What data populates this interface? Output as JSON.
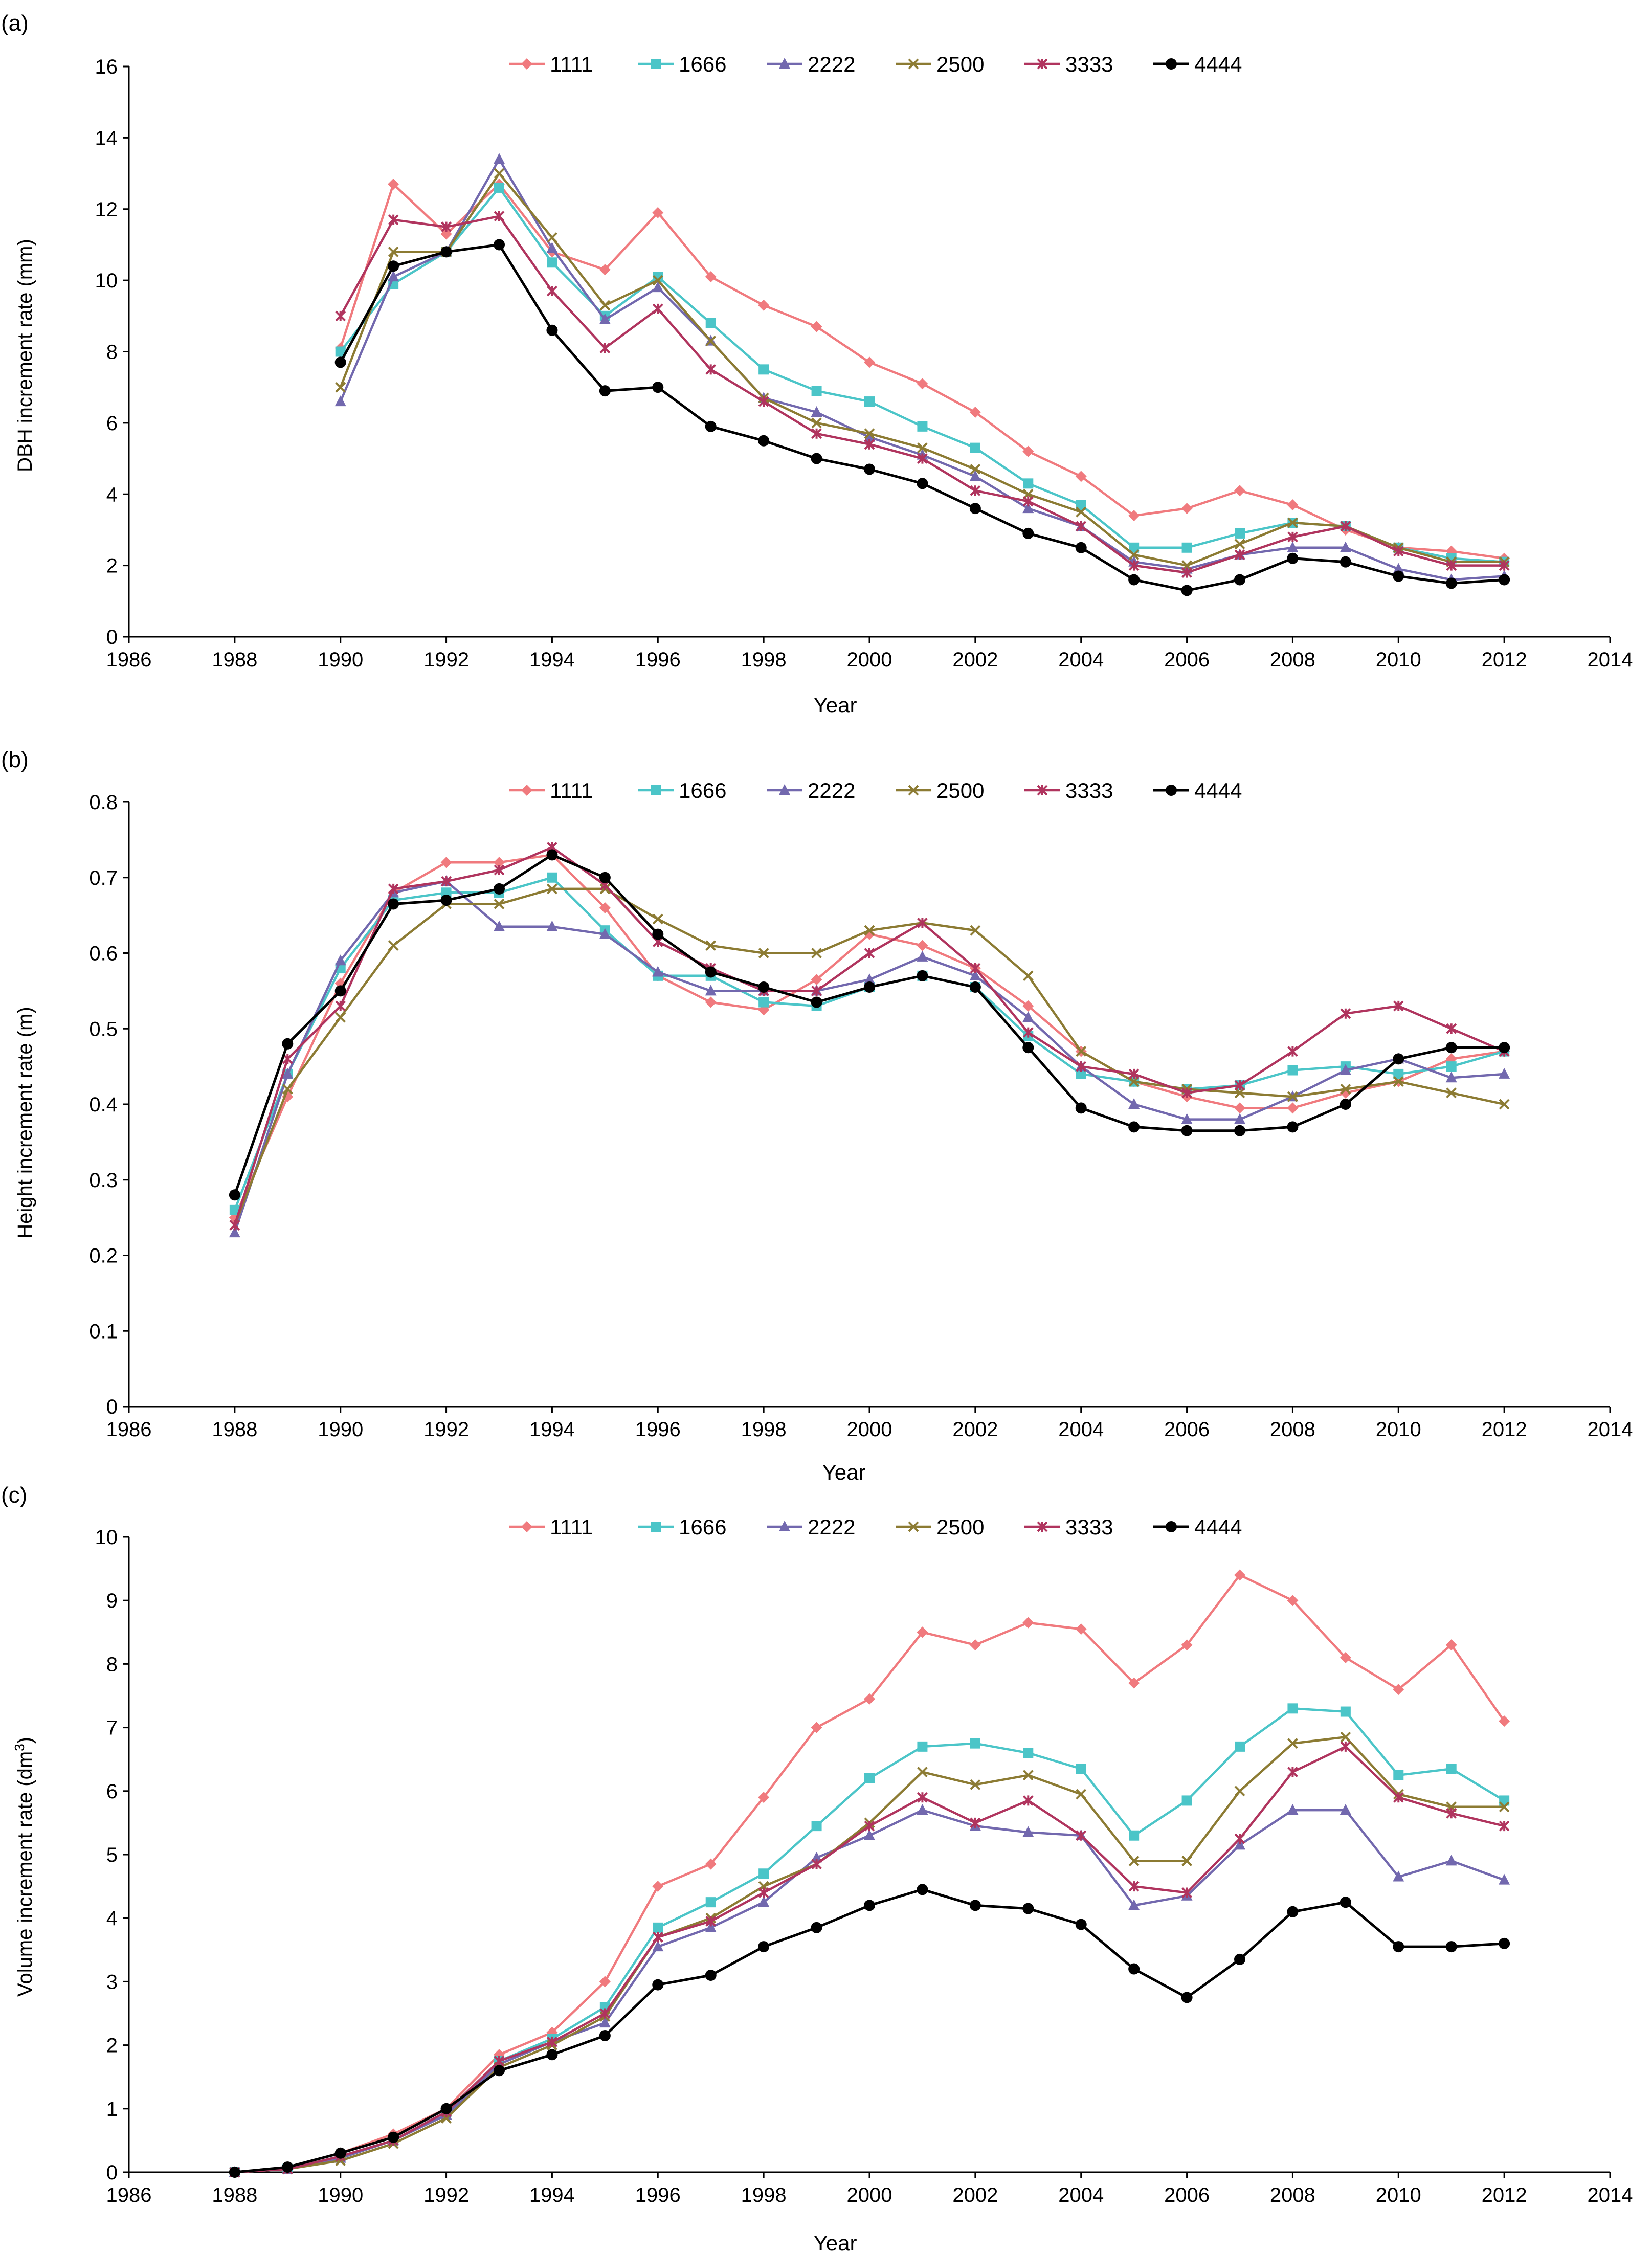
{
  "colors": {
    "s1111": "#F07A7E",
    "s1666": "#4BC5C8",
    "s2222": "#7268AE",
    "s2500": "#8C7B33",
    "s3333": "#B0345E",
    "s4444": "#000000",
    "axis": "#000000"
  },
  "chart_data": [
    {
      "type": "line",
      "panel": "(a)",
      "title": "",
      "xlabel": "Year",
      "ylabel": "DBH increment rate (mm)",
      "xlim": [
        1986,
        2014
      ],
      "ylim": [
        0,
        16
      ],
      "xticks": [
        1986,
        1988,
        1990,
        1992,
        1994,
        1996,
        1998,
        2000,
        2002,
        2004,
        2006,
        2008,
        2010,
        2012,
        2014
      ],
      "yticks": [
        0,
        2,
        4,
        6,
        8,
        10,
        12,
        14,
        16
      ],
      "x": [
        1990,
        1991,
        1992,
        1993,
        1994,
        1995,
        1996,
        1997,
        1998,
        1999,
        2000,
        2001,
        2002,
        2003,
        2004,
        2005,
        2006,
        2007,
        2008,
        2009,
        2010,
        2011,
        2012
      ],
      "series": [
        {
          "name": "1111",
          "values": [
            8.1,
            12.7,
            11.3,
            12.7,
            10.8,
            10.3,
            11.9,
            10.1,
            9.3,
            8.7,
            7.7,
            7.1,
            6.3,
            5.2,
            4.5,
            3.4,
            3.6,
            4.1,
            3.7,
            3.0,
            2.5,
            2.4,
            2.2
          ]
        },
        {
          "name": "1666",
          "values": [
            8.0,
            9.9,
            10.8,
            12.6,
            10.5,
            9.0,
            10.1,
            8.8,
            7.5,
            6.9,
            6.6,
            5.9,
            5.3,
            4.3,
            3.7,
            2.5,
            2.5,
            2.9,
            3.2,
            3.1,
            2.5,
            2.2,
            2.1
          ]
        },
        {
          "name": "2222",
          "values": [
            6.6,
            10.1,
            10.8,
            13.4,
            10.9,
            8.9,
            9.8,
            8.3,
            6.7,
            6.3,
            5.6,
            5.1,
            4.5,
            3.6,
            3.1,
            2.1,
            1.9,
            2.3,
            2.5,
            2.5,
            1.9,
            1.6,
            1.7
          ]
        },
        {
          "name": "2500",
          "values": [
            7.0,
            10.8,
            10.8,
            13.0,
            11.2,
            9.3,
            10.0,
            8.3,
            6.7,
            6.0,
            5.7,
            5.3,
            4.7,
            4.0,
            3.5,
            2.3,
            2.0,
            2.6,
            3.2,
            3.1,
            2.5,
            2.1,
            2.1
          ]
        },
        {
          "name": "3333",
          "values": [
            9.0,
            11.7,
            11.5,
            11.8,
            9.7,
            8.1,
            9.2,
            7.5,
            6.6,
            5.7,
            5.4,
            5.0,
            4.1,
            3.8,
            3.1,
            2.0,
            1.8,
            2.3,
            2.8,
            3.1,
            2.4,
            2.0,
            2.0
          ]
        },
        {
          "name": "4444",
          "values": [
            7.7,
            10.4,
            10.8,
            11.0,
            8.6,
            6.9,
            7.0,
            5.9,
            5.5,
            5.0,
            4.7,
            4.3,
            3.6,
            2.9,
            2.5,
            1.6,
            1.3,
            1.6,
            2.2,
            2.1,
            1.7,
            1.5,
            1.6
          ]
        }
      ]
    },
    {
      "type": "line",
      "panel": "(b)",
      "title": "",
      "xlabel": "Year",
      "ylabel": "Height increment rate (m)",
      "xlim": [
        1986,
        2014
      ],
      "ylim": [
        0,
        0.8
      ],
      "xticks": [
        1986,
        1988,
        1990,
        1992,
        1994,
        1996,
        1998,
        2000,
        2002,
        2004,
        2006,
        2008,
        2010,
        2012,
        2014
      ],
      "yticks": [
        0,
        0.1,
        0.2,
        0.3,
        0.4,
        0.5,
        0.6,
        0.7,
        0.8
      ],
      "x": [
        1988,
        1989,
        1990,
        1991,
        1992,
        1993,
        1994,
        1995,
        1996,
        1997,
        1998,
        1999,
        2000,
        2001,
        2002,
        2003,
        2004,
        2005,
        2006,
        2007,
        2008,
        2009,
        2010,
        2011,
        2012
      ],
      "series": [
        {
          "name": "1111",
          "values": [
            0.25,
            0.41,
            0.56,
            0.68,
            0.72,
            0.72,
            0.73,
            0.66,
            0.57,
            0.535,
            0.525,
            0.565,
            0.625,
            0.61,
            0.58,
            0.53,
            0.47,
            0.43,
            0.41,
            0.395,
            0.395,
            0.415,
            0.43,
            0.46,
            0.47
          ]
        },
        {
          "name": "1666",
          "values": [
            0.26,
            0.44,
            0.58,
            0.67,
            0.68,
            0.68,
            0.7,
            0.63,
            0.57,
            0.57,
            0.535,
            0.53,
            0.555,
            0.57,
            0.555,
            0.49,
            0.44,
            0.43,
            0.42,
            0.425,
            0.445,
            0.45,
            0.44,
            0.45,
            0.47
          ]
        },
        {
          "name": "2222",
          "values": [
            0.23,
            0.44,
            0.59,
            0.68,
            0.695,
            0.635,
            0.635,
            0.625,
            0.575,
            0.55,
            0.55,
            0.55,
            0.565,
            0.595,
            0.57,
            0.515,
            0.45,
            0.4,
            0.38,
            0.38,
            0.41,
            0.445,
            0.46,
            0.435,
            0.44
          ]
        },
        {
          "name": "2500",
          "values": [
            0.24,
            0.42,
            0.515,
            0.61,
            0.665,
            0.665,
            0.685,
            0.685,
            0.645,
            0.61,
            0.6,
            0.6,
            0.63,
            0.64,
            0.63,
            0.57,
            0.47,
            0.43,
            0.42,
            0.415,
            0.41,
            0.42,
            0.43,
            0.415,
            0.4
          ]
        },
        {
          "name": "3333",
          "values": [
            0.24,
            0.46,
            0.53,
            0.685,
            0.695,
            0.71,
            0.74,
            0.69,
            0.615,
            0.58,
            0.55,
            0.55,
            0.6,
            0.64,
            0.58,
            0.495,
            0.45,
            0.44,
            0.415,
            0.425,
            0.47,
            0.52,
            0.53,
            0.5,
            0.47
          ]
        },
        {
          "name": "4444",
          "values": [
            0.28,
            0.48,
            0.55,
            0.665,
            0.67,
            0.685,
            0.73,
            0.7,
            0.625,
            0.575,
            0.555,
            0.535,
            0.555,
            0.57,
            0.555,
            0.475,
            0.395,
            0.37,
            0.365,
            0.365,
            0.37,
            0.4,
            0.46,
            0.475,
            0.475
          ]
        }
      ]
    },
    {
      "type": "line",
      "panel": "(c)",
      "title": "",
      "xlabel": "Year",
      "ylabel": "Volume increment rate (dm",
      "ylabel_sup": "3",
      "ylabel_close": ")",
      "xlim": [
        1986,
        2014
      ],
      "ylim": [
        0,
        10
      ],
      "xticks": [
        1986,
        1988,
        1990,
        1992,
        1994,
        1996,
        1998,
        2000,
        2002,
        2004,
        2006,
        2008,
        2010,
        2012,
        2014
      ],
      "yticks": [
        0,
        1,
        2,
        3,
        4,
        5,
        6,
        7,
        8,
        9,
        10
      ],
      "x": [
        1988,
        1989,
        1990,
        1991,
        1992,
        1993,
        1994,
        1995,
        1996,
        1997,
        1998,
        1999,
        2000,
        2001,
        2002,
        2003,
        2004,
        2005,
        2006,
        2007,
        2008,
        2009,
        2010,
        2011,
        2012
      ],
      "series": [
        {
          "name": "1111",
          "values": [
            0.0,
            0.08,
            0.3,
            0.6,
            1.0,
            1.85,
            2.2,
            3.0,
            4.5,
            4.85,
            5.9,
            7.0,
            7.45,
            8.5,
            8.3,
            8.65,
            8.55,
            7.7,
            8.3,
            9.4,
            9.0,
            8.1,
            7.6,
            8.3,
            7.1
          ]
        },
        {
          "name": "1666",
          "values": [
            0.0,
            0.05,
            0.25,
            0.5,
            0.95,
            1.75,
            2.1,
            2.6,
            3.85,
            4.25,
            4.7,
            5.45,
            6.2,
            6.7,
            6.75,
            6.6,
            6.35,
            5.3,
            5.85,
            6.7,
            7.3,
            7.25,
            6.25,
            6.35,
            5.85
          ]
        },
        {
          "name": "2222",
          "values": [
            0.0,
            0.05,
            0.22,
            0.5,
            0.9,
            1.7,
            2.05,
            2.35,
            3.55,
            3.85,
            4.25,
            4.95,
            5.3,
            5.7,
            5.45,
            5.35,
            5.3,
            4.2,
            4.35,
            5.15,
            5.7,
            5.7,
            4.65,
            4.9,
            4.6
          ]
        },
        {
          "name": "2500",
          "values": [
            0.0,
            0.05,
            0.18,
            0.45,
            0.85,
            1.65,
            2.0,
            2.45,
            3.7,
            4.0,
            4.5,
            4.85,
            5.5,
            6.3,
            6.1,
            6.25,
            5.95,
            4.9,
            4.9,
            6.0,
            6.75,
            6.85,
            5.95,
            5.75,
            5.75
          ]
        },
        {
          "name": "3333",
          "values": [
            0.0,
            0.05,
            0.25,
            0.5,
            0.95,
            1.75,
            2.05,
            2.5,
            3.7,
            3.95,
            4.4,
            4.85,
            5.45,
            5.9,
            5.5,
            5.85,
            5.3,
            4.5,
            4.4,
            5.25,
            6.3,
            6.7,
            5.9,
            5.65,
            5.45
          ]
        },
        {
          "name": "4444",
          "values": [
            0.0,
            0.08,
            0.3,
            0.55,
            1.0,
            1.6,
            1.85,
            2.15,
            2.95,
            3.1,
            3.55,
            3.85,
            4.2,
            4.45,
            4.2,
            4.15,
            3.9,
            3.2,
            2.75,
            3.35,
            4.1,
            4.25,
            3.55,
            3.55,
            3.6
          ]
        }
      ]
    }
  ]
}
